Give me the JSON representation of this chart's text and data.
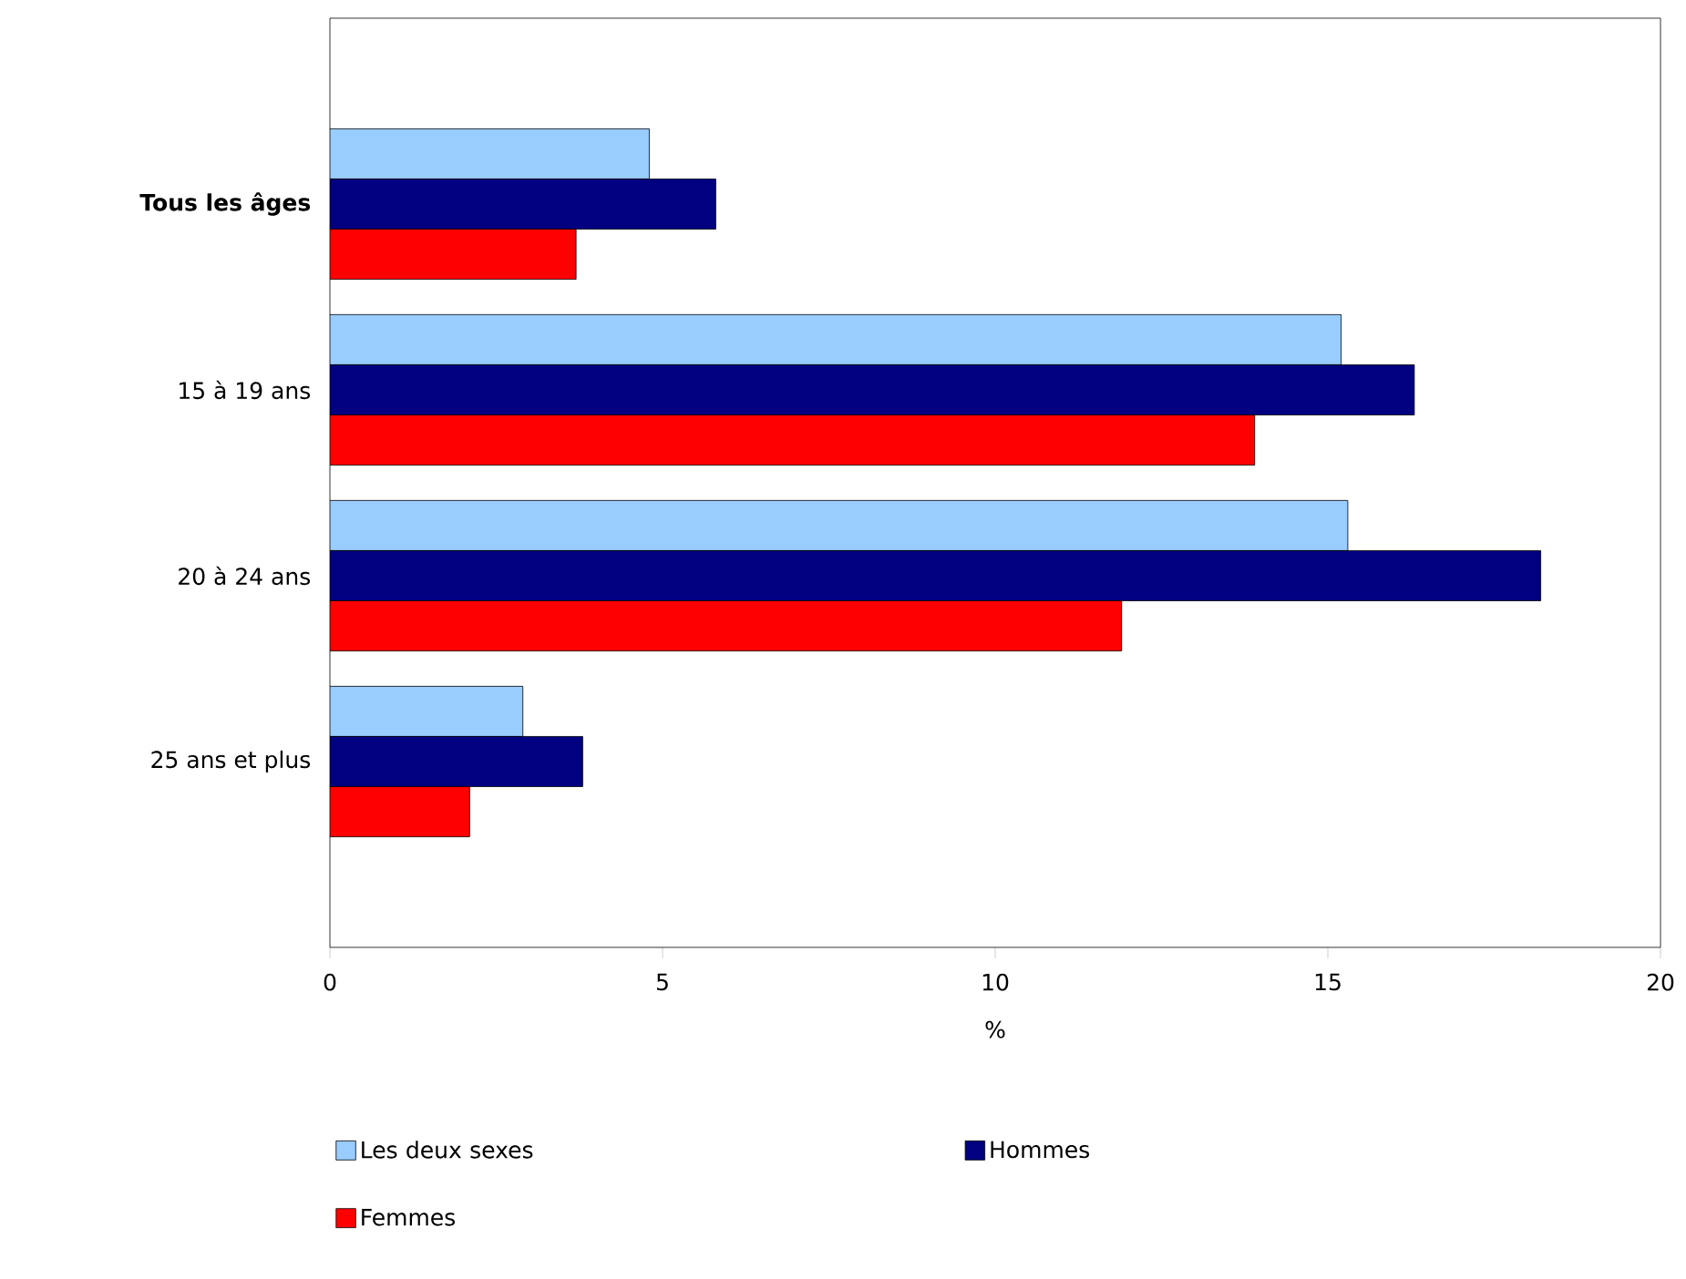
{
  "chart_data": {
    "type": "bar",
    "orientation": "horizontal",
    "xlabel": "%",
    "categories": [
      "**Tous les âges**",
      "15 à 19 ans",
      "20 à 24 ans",
      "25 ans et plus"
    ],
    "series": [
      {
        "name": "Les deux sexes",
        "color": "#99ccff",
        "values": [
          4.8,
          15.2,
          15.3,
          2.9
        ]
      },
      {
        "name": "Hommes",
        "color": "#000080",
        "values": [
          5.8,
          16.3,
          18.2,
          3.8
        ]
      },
      {
        "name": "Femmes",
        "color": "#ff0000",
        "values": [
          3.7,
          13.9,
          11.9,
          2.1
        ]
      }
    ],
    "xlim": [
      0,
      20
    ],
    "xticks": [
      0,
      5,
      10,
      15,
      20
    ],
    "grid": false,
    "legend": "bottom"
  }
}
